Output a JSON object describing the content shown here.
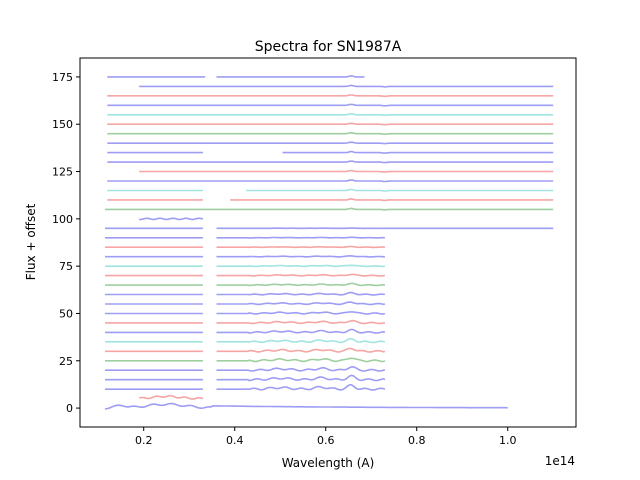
{
  "chart_data": {
    "type": "line",
    "title": "Spectra for SN1987A",
    "xlabel": "Wavelength (A)",
    "ylabel": "Flux + offset",
    "x_offset_label": "1e14",
    "xlim": [
      0.06,
      1.15
    ],
    "ylim": [
      -10,
      185
    ],
    "xticks": [
      0.2,
      0.4,
      0.6,
      0.8,
      1.0
    ],
    "xtick_labels": [
      "0.2",
      "0.4",
      "0.6",
      "0.8",
      "1.0"
    ],
    "yticks": [
      0,
      25,
      50,
      75,
      100,
      125,
      150,
      175
    ],
    "ytick_labels": [
      "0",
      "25",
      "50",
      "75",
      "100",
      "125",
      "150",
      "175"
    ],
    "grid": false,
    "colors": {
      "blue": "#3b3bea",
      "red": "#ee4a4a",
      "teal": "#46c9c0",
      "green": "#3f9f3f"
    },
    "series": [
      {
        "offset": 175,
        "color": "blue",
        "segments": [
          [
            0.12,
            0.335
          ],
          [
            0.36,
            0.685
          ]
        ]
      },
      {
        "offset": 170,
        "color": "blue",
        "segments": [
          [
            0.19,
            1.1
          ]
        ]
      },
      {
        "offset": 165,
        "color": "red",
        "segments": [
          [
            0.12,
            1.1
          ]
        ]
      },
      {
        "offset": 160,
        "color": "blue",
        "segments": [
          [
            0.12,
            1.1
          ]
        ]
      },
      {
        "offset": 155,
        "color": "teal",
        "segments": [
          [
            0.12,
            1.1
          ]
        ]
      },
      {
        "offset": 150,
        "color": "red",
        "segments": [
          [
            0.12,
            1.1
          ]
        ]
      },
      {
        "offset": 145,
        "color": "green",
        "segments": [
          [
            0.12,
            1.1
          ]
        ]
      },
      {
        "offset": 140,
        "color": "blue",
        "segments": [
          [
            0.12,
            1.1
          ]
        ]
      },
      {
        "offset": 135,
        "color": "blue",
        "segments": [
          [
            0.12,
            0.33
          ],
          [
            0.505,
            1.1
          ]
        ]
      },
      {
        "offset": 130,
        "color": "blue",
        "segments": [
          [
            0.12,
            1.1
          ]
        ]
      },
      {
        "offset": 125,
        "color": "red",
        "segments": [
          [
            0.19,
            1.1
          ]
        ]
      },
      {
        "offset": 120,
        "color": "blue",
        "segments": [
          [
            0.12,
            1.1
          ]
        ]
      },
      {
        "offset": 115,
        "color": "teal",
        "segments": [
          [
            0.12,
            0.33
          ],
          [
            0.425,
            1.1
          ]
        ]
      },
      {
        "offset": 110,
        "color": "red",
        "segments": [
          [
            0.12,
            0.33
          ],
          [
            0.39,
            1.1
          ]
        ]
      },
      {
        "offset": 105,
        "color": "green",
        "segments": [
          [
            0.115,
            1.1
          ]
        ]
      },
      {
        "offset": 100,
        "color": "blue",
        "segments": [
          [
            0.19,
            0.33
          ]
        ]
      },
      {
        "offset": 95,
        "color": "blue",
        "segments": [
          [
            0.115,
            0.33
          ],
          [
            0.36,
            1.1
          ]
        ]
      },
      {
        "offset": 90,
        "color": "blue",
        "segments": [
          [
            0.115,
            0.33
          ],
          [
            0.36,
            0.73
          ]
        ]
      },
      {
        "offset": 85,
        "color": "red",
        "segments": [
          [
            0.115,
            0.33
          ],
          [
            0.36,
            0.73
          ]
        ]
      },
      {
        "offset": 80,
        "color": "blue",
        "segments": [
          [
            0.115,
            0.33
          ],
          [
            0.36,
            0.73
          ]
        ]
      },
      {
        "offset": 75,
        "color": "teal",
        "segments": [
          [
            0.115,
            0.33
          ],
          [
            0.36,
            0.73
          ]
        ]
      },
      {
        "offset": 70,
        "color": "red",
        "segments": [
          [
            0.115,
            0.33
          ],
          [
            0.36,
            0.73
          ]
        ]
      },
      {
        "offset": 65,
        "color": "green",
        "segments": [
          [
            0.115,
            0.33
          ],
          [
            0.36,
            0.73
          ]
        ]
      },
      {
        "offset": 60,
        "color": "blue",
        "segments": [
          [
            0.115,
            0.33
          ],
          [
            0.36,
            0.73
          ]
        ]
      },
      {
        "offset": 55,
        "color": "blue",
        "segments": [
          [
            0.115,
            0.33
          ],
          [
            0.36,
            0.73
          ]
        ]
      },
      {
        "offset": 50,
        "color": "blue",
        "segments": [
          [
            0.115,
            0.33
          ],
          [
            0.36,
            0.73
          ]
        ]
      },
      {
        "offset": 45,
        "color": "red",
        "segments": [
          [
            0.115,
            0.33
          ],
          [
            0.36,
            0.73
          ]
        ]
      },
      {
        "offset": 40,
        "color": "blue",
        "segments": [
          [
            0.115,
            0.33
          ],
          [
            0.36,
            0.73
          ]
        ]
      },
      {
        "offset": 35,
        "color": "teal",
        "segments": [
          [
            0.115,
            0.33
          ],
          [
            0.36,
            0.73
          ]
        ]
      },
      {
        "offset": 30,
        "color": "red",
        "segments": [
          [
            0.115,
            0.33
          ],
          [
            0.36,
            0.73
          ]
        ]
      },
      {
        "offset": 25,
        "color": "green",
        "segments": [
          [
            0.115,
            0.33
          ],
          [
            0.36,
            0.73
          ]
        ]
      },
      {
        "offset": 20,
        "color": "blue",
        "segments": [
          [
            0.115,
            0.33
          ],
          [
            0.36,
            0.73
          ]
        ]
      },
      {
        "offset": 15,
        "color": "blue",
        "segments": [
          [
            0.115,
            0.33
          ],
          [
            0.36,
            0.73
          ]
        ]
      },
      {
        "offset": 10,
        "color": "blue",
        "segments": [
          [
            0.115,
            0.33
          ],
          [
            0.36,
            0.73
          ]
        ]
      },
      {
        "offset": 5,
        "color": "red",
        "segments": [
          [
            0.19,
            0.33
          ]
        ]
      },
      {
        "offset": 0,
        "color": "blue",
        "segments": [
          [
            0.115,
            1.0
          ]
        ]
      }
    ]
  }
}
